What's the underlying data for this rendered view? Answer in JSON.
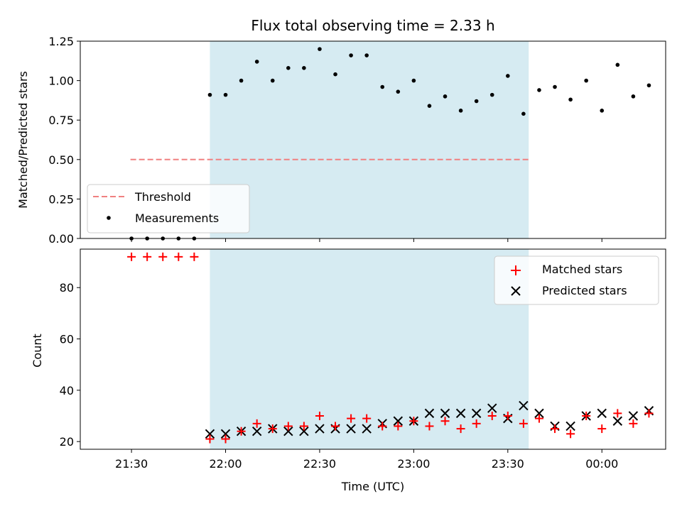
{
  "chart_data": [
    {
      "type": "scatter",
      "title": "Flux total observing time = 2.33 h",
      "xlabel": "",
      "ylabel": "Matched/Predicted stars",
      "ylim": [
        0,
        1.25
      ],
      "yticks": [
        "0.00",
        "0.25",
        "0.50",
        "0.75",
        "1.00",
        "1.25"
      ],
      "legend_position": "lower-left",
      "observing_window": [
        "21:55",
        "23:36:40"
      ],
      "threshold": {
        "name": "Threshold",
        "value": 0.5,
        "x_range": [
          "21:29:40",
          "23:36:40"
        ],
        "color": "#f08080"
      },
      "series": [
        {
          "name": "Measurements",
          "color": "#000000",
          "x": [
            "21:30",
            "21:35",
            "21:40",
            "21:45",
            "21:50",
            "21:55",
            "22:00",
            "22:05",
            "22:10",
            "22:15",
            "22:20",
            "22:25",
            "22:30",
            "22:35",
            "22:40",
            "22:45",
            "22:50",
            "22:55",
            "23:00",
            "23:05",
            "23:10",
            "23:15",
            "23:20",
            "23:25",
            "23:30",
            "23:35",
            "23:40",
            "23:45",
            "23:50",
            "23:55",
            "00:00",
            "00:05",
            "00:10",
            "00:15"
          ],
          "y": [
            0,
            0,
            0,
            0,
            0,
            0.91,
            0.91,
            1.0,
            1.12,
            1.0,
            1.08,
            1.08,
            1.2,
            1.04,
            1.16,
            1.16,
            0.96,
            0.93,
            1.0,
            0.84,
            0.9,
            0.81,
            0.87,
            0.91,
            1.03,
            0.79,
            0.94,
            0.96,
            0.88,
            1.0,
            0.81,
            1.1,
            0.9,
            0.97
          ]
        }
      ]
    },
    {
      "type": "scatter",
      "xlabel": "Time (UTC)",
      "ylabel": "Count",
      "ylim": [
        17,
        95
      ],
      "yticks": [
        "20",
        "40",
        "60",
        "80"
      ],
      "xticks": [
        "21:30",
        "22:00",
        "22:30",
        "23:00",
        "23:30",
        "00:00"
      ],
      "legend_position": "upper-right",
      "series": [
        {
          "name": "Matched stars",
          "marker": "plus",
          "color": "#ff0000",
          "x": [
            "21:30",
            "21:35",
            "21:40",
            "21:45",
            "21:50",
            "21:55",
            "22:00",
            "22:05",
            "22:10",
            "22:15",
            "22:20",
            "22:25",
            "22:30",
            "22:35",
            "22:40",
            "22:45",
            "22:50",
            "22:55",
            "23:00",
            "23:05",
            "23:10",
            "23:15",
            "23:20",
            "23:25",
            "23:30",
            "23:35",
            "23:40",
            "23:45",
            "23:50",
            "23:55",
            "00:00",
            "00:05",
            "00:10",
            "00:15"
          ],
          "y": [
            92,
            92,
            92,
            92,
            92,
            21,
            21,
            24,
            27,
            25,
            26,
            26,
            30,
            26,
            29,
            29,
            26,
            26,
            28,
            26,
            28,
            25,
            27,
            30,
            30,
            27,
            29,
            25,
            23,
            30,
            25,
            31,
            27,
            31
          ]
        },
        {
          "name": "Predicted stars",
          "marker": "x",
          "color": "#000000",
          "x": [
            "21:55",
            "22:00",
            "22:05",
            "22:10",
            "22:15",
            "22:20",
            "22:25",
            "22:30",
            "22:35",
            "22:40",
            "22:45",
            "22:50",
            "22:55",
            "23:00",
            "23:05",
            "23:10",
            "23:15",
            "23:20",
            "23:25",
            "23:30",
            "23:35",
            "23:40",
            "23:45",
            "23:50",
            "23:55",
            "00:00",
            "00:05",
            "00:10",
            "00:15"
          ],
          "y": [
            23,
            23,
            24,
            24,
            25,
            24,
            24,
            25,
            25,
            25,
            25,
            27,
            28,
            28,
            31,
            31,
            31,
            31,
            33,
            29,
            34,
            31,
            26,
            26,
            30,
            31,
            28,
            30,
            32
          ]
        }
      ]
    }
  ]
}
